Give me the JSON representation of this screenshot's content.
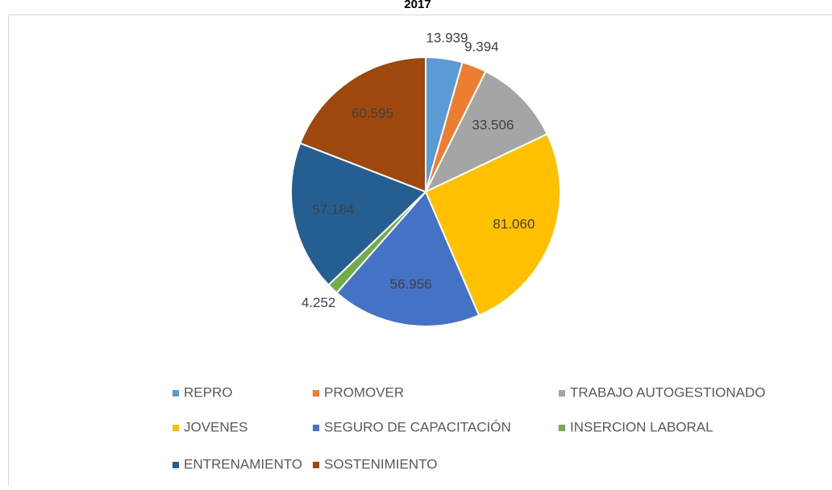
{
  "chart_data": {
    "type": "pie",
    "title": "2017",
    "categories": [
      "REPRO",
      "PROMOVER",
      "TRABAJO AUTOGESTIONADO",
      "JOVENES",
      "SEGURO DE CAPACITACIÓN",
      "INSERCION LABORAL",
      "ENTRENAMIENTO",
      "SOSTENIMIENTO"
    ],
    "values": [
      13939,
      9394,
      33506,
      81060,
      56956,
      4252,
      57184,
      60595
    ],
    "value_labels": [
      "13.939",
      "9.394",
      "33.506",
      "81.060",
      "56.956",
      "4.252",
      "57.184",
      "60.595"
    ],
    "colors": [
      "#5b9bd5",
      "#ed7d31",
      "#a5a5a5",
      "#ffc000",
      "#4472c4",
      "#70ad47",
      "#255e91",
      "#9e480e"
    ],
    "legend": "bottom"
  }
}
